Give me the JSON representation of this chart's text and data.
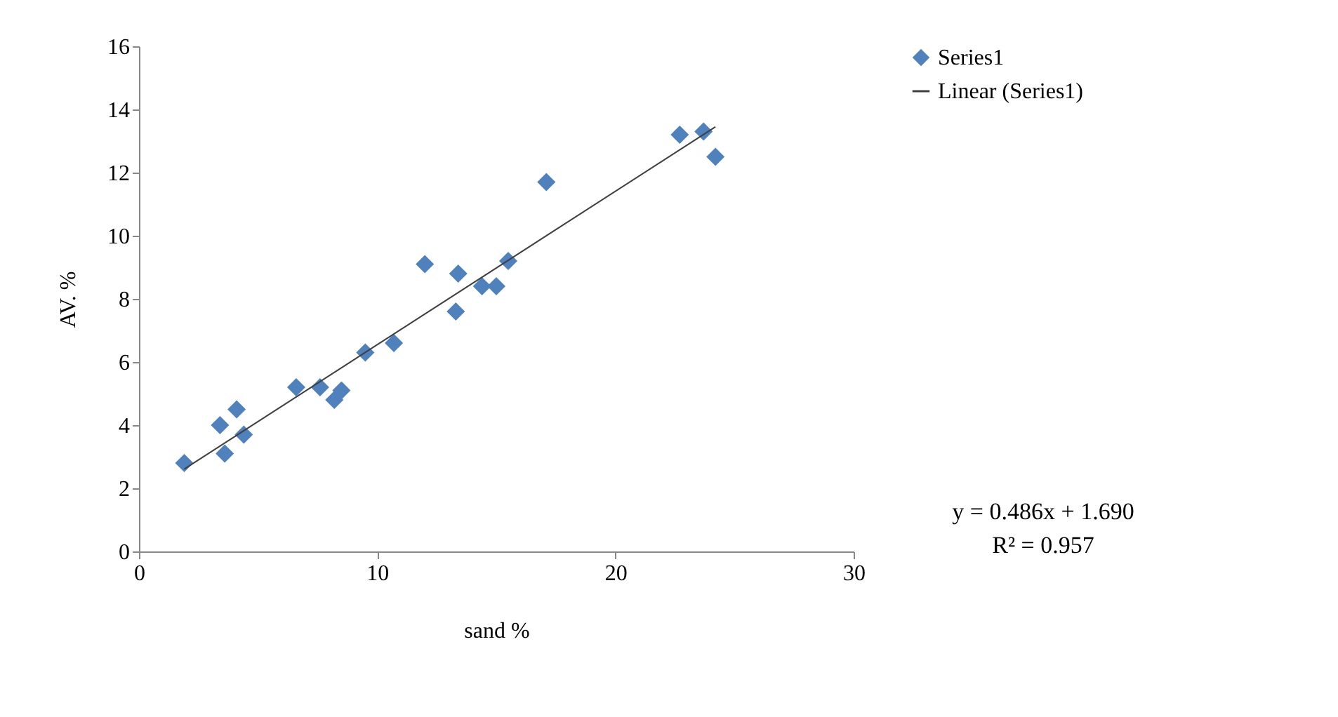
{
  "chart_data": {
    "type": "scatter",
    "xlabel": "sand %",
    "ylabel": "AV. %",
    "xlim": [
      0,
      30
    ],
    "xticks": [
      0,
      10,
      20,
      30
    ],
    "ylim": [
      0,
      16
    ],
    "yticks": [
      0,
      2,
      4,
      6,
      8,
      10,
      12,
      14,
      16
    ],
    "grid": false,
    "legend": "right",
    "series": [
      {
        "name": "Series1",
        "color": "#4f81bd",
        "marker": "diamond",
        "x": [
          1.9,
          3.4,
          3.6,
          4.1,
          4.4,
          6.6,
          7.6,
          8.2,
          8.5,
          9.5,
          10.7,
          12.0,
          13.3,
          13.4,
          14.4,
          15.0,
          15.5,
          17.1,
          22.7,
          23.7,
          24.2
        ],
        "values": [
          2.8,
          4.0,
          3.1,
          4.5,
          3.7,
          5.2,
          5.2,
          4.8,
          5.1,
          6.3,
          6.6,
          9.1,
          7.6,
          8.8,
          8.4,
          8.4,
          9.2,
          11.7,
          13.2,
          13.3,
          12.5
        ]
      },
      {
        "name": "Linear (Series1)",
        "type": "line",
        "color": "#404040",
        "line_style": "solid",
        "x": [
          1.9,
          24.2
        ],
        "values": [
          2.61,
          13.45
        ]
      }
    ],
    "annotations": [
      "y = 0.486x + 1.690",
      "R² = 0.957"
    ]
  }
}
